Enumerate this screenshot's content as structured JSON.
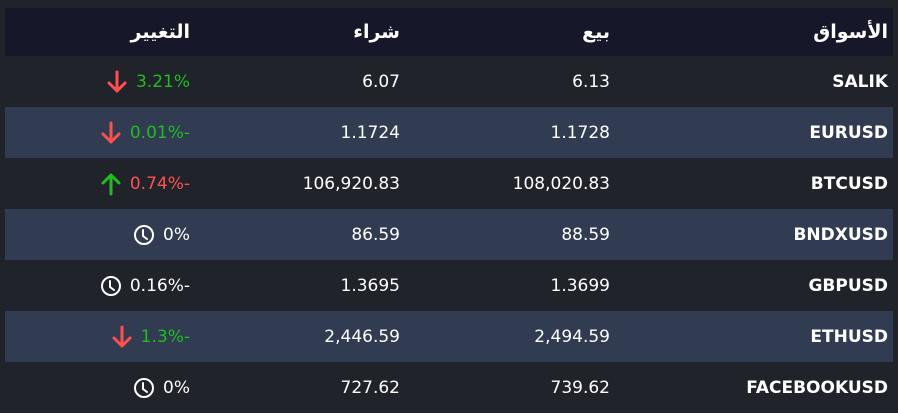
{
  "headers": {
    "market": "الأسواق",
    "sell": "بيع",
    "buy": "شراء",
    "change": "التغيير"
  },
  "colors": {
    "up": "#1fbd1f",
    "down": "#ff5050",
    "header_bg": "#161729",
    "row_alt_bg": "#313b52",
    "bg": "#21232b"
  },
  "rows": [
    {
      "market": "SALIK",
      "sell": "6.13",
      "buy": "6.07",
      "change": "3.21%",
      "change_color": "green",
      "icon": "arrow-down-icon"
    },
    {
      "market": "EURUSD",
      "sell": "1.1728",
      "buy": "1.1724",
      "change": "0.01%-",
      "change_color": "green",
      "icon": "arrow-down-icon"
    },
    {
      "market": "BTCUSD",
      "sell": "108,020.83",
      "buy": "106,920.83",
      "change": "0.74%-",
      "change_color": "red",
      "icon": "arrow-up-icon"
    },
    {
      "market": "BNDXUSD",
      "sell": "88.59",
      "buy": "86.59",
      "change": "0%",
      "change_color": "white",
      "icon": "clock-icon"
    },
    {
      "market": "GBPUSD",
      "sell": "1.3699",
      "buy": "1.3695",
      "change": "0.16%-",
      "change_color": "white",
      "icon": "clock-icon"
    },
    {
      "market": "ETHUSD",
      "sell": "2,494.59",
      "buy": "2,446.59",
      "change": "1.3%-",
      "change_color": "green",
      "icon": "arrow-down-icon"
    },
    {
      "market": "FACEBOOKUSD",
      "sell": "739.62",
      "buy": "727.62",
      "change": "0%",
      "change_color": "white",
      "icon": "clock-icon"
    }
  ]
}
